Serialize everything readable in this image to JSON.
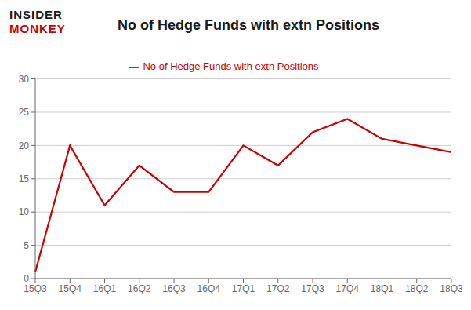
{
  "chart_data": {
    "type": "line",
    "title": "No of Hedge Funds with extn Positions",
    "annotations": [
      {
        "text": "INSIDER",
        "color": "#1a1a1a"
      },
      {
        "text": "MONKEY",
        "color": "#cc0000"
      }
    ],
    "categories": [
      "15Q3",
      "15Q4",
      "16Q1",
      "16Q2",
      "16Q3",
      "16Q4",
      "17Q1",
      "17Q2",
      "17Q3",
      "17Q4",
      "18Q1",
      "18Q2",
      "18Q3"
    ],
    "series": [
      {
        "name": "No of Hedge Funds with extn Positions",
        "color": "#cc0000",
        "values": [
          1,
          20,
          11,
          17,
          13,
          13,
          20,
          17,
          22,
          24,
          21,
          20,
          19
        ]
      }
    ],
    "ylim": [
      0,
      30
    ],
    "yticks": [
      0,
      5,
      10,
      15,
      20,
      25,
      30
    ],
    "grid": true,
    "legend": "top"
  }
}
